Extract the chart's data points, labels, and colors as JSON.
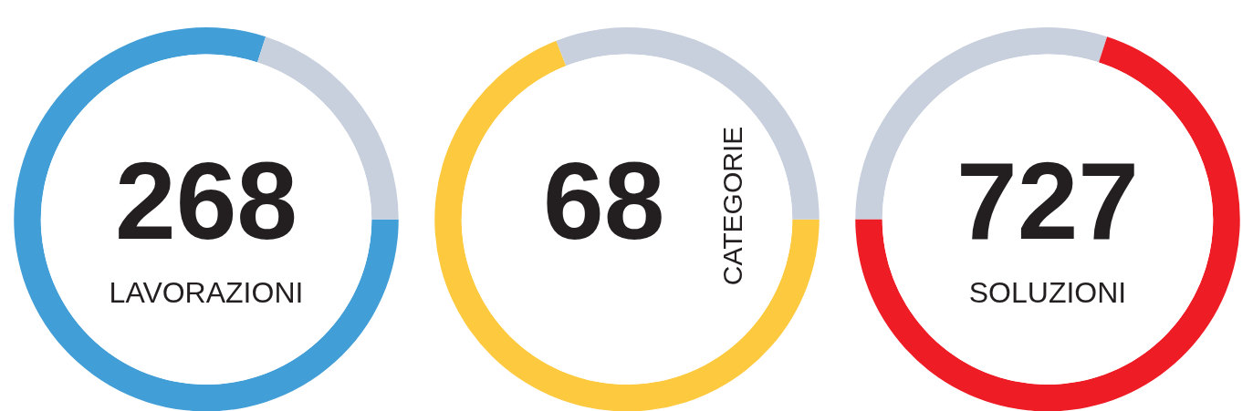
{
  "chart_data": [
    {
      "type": "donut",
      "categories": [
        null,
        null
      ],
      "values": [
        80,
        20
      ],
      "colors": [
        "#429ed7",
        "#c8d0de"
      ],
      "annotations": [
        "268",
        "LAVORAZIONI"
      ]
    },
    {
      "type": "donut",
      "categories": [
        null,
        null
      ],
      "values": [
        69,
        31
      ],
      "colors": [
        "#fdc93e",
        "#c8d0de"
      ],
      "annotations": [
        "68",
        "CATEGORIE"
      ]
    },
    {
      "type": "donut",
      "categories": [
        null,
        null
      ],
      "values": [
        30,
        70
      ],
      "colors": [
        "#c8d0de",
        "#ee1c25"
      ],
      "annotations": [
        "727",
        "SOLUZIONI"
      ]
    }
  ]
}
